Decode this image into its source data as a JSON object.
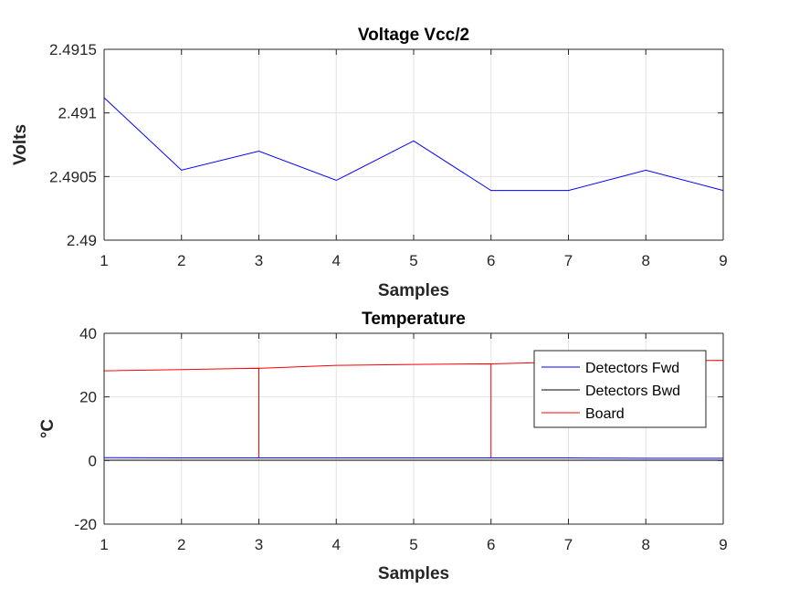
{
  "chart_data": [
    {
      "type": "line",
      "title": "Voltage Vcc/2",
      "xlabel": "Samples",
      "ylabel": "Volts",
      "xlim": [
        1,
        9
      ],
      "ylim": [
        2.49,
        2.4915
      ],
      "xticks": [
        1,
        2,
        3,
        4,
        5,
        6,
        7,
        8,
        9
      ],
      "yticks": [
        2.49,
        2.4905,
        2.491,
        2.4915
      ],
      "ytick_labels": [
        "2.49",
        "2.4905",
        "2.491",
        "2.4915"
      ],
      "grid": true,
      "series": [
        {
          "color": "#0000ff",
          "x": [
            1,
            2,
            3,
            4,
            5,
            6,
            7,
            8,
            9
          ],
          "y": [
            2.49112,
            2.49055,
            2.4907,
            2.49047,
            2.49078,
            2.49039,
            2.49039,
            2.49055,
            2.49039
          ]
        }
      ]
    },
    {
      "type": "line",
      "title": "Temperature",
      "xlabel": "Samples",
      "ylabel": "°C",
      "xlim": [
        1,
        9
      ],
      "ylim": [
        -20,
        40
      ],
      "xticks": [
        1,
        2,
        3,
        4,
        5,
        6,
        7,
        8,
        9
      ],
      "yticks": [
        -20,
        0,
        20,
        40
      ],
      "ytick_labels": [
        "-20",
        "0",
        "20",
        "40"
      ],
      "grid": true,
      "legend": "top-right",
      "series": [
        {
          "name": "Detectors Fwd",
          "color": "#0000ff",
          "x": [
            1,
            2,
            3,
            4,
            5,
            6,
            7,
            8,
            9
          ],
          "y": [
            0.9,
            0.8,
            0.8,
            0.8,
            0.8,
            0.8,
            0.8,
            0.7,
            0.7
          ]
        },
        {
          "name": "Detectors Bwd",
          "color": "#000000",
          "x": [
            1,
            2,
            3,
            4,
            5,
            6,
            7,
            8,
            9
          ],
          "y": [
            0.1,
            0.1,
            0.1,
            0.1,
            0.1,
            0.1,
            0.1,
            0.1,
            0.1
          ]
        },
        {
          "name": "Board",
          "color": "#ff0000",
          "x": [
            1,
            2,
            3,
            3,
            3,
            4,
            5,
            6,
            6,
            6,
            7,
            8,
            9,
            9
          ],
          "y": [
            28.2,
            28.6,
            29.0,
            0.8,
            29.0,
            29.9,
            30.2,
            30.4,
            0.8,
            30.4,
            31.0,
            31.3,
            31.5,
            0.8
          ]
        }
      ]
    }
  ]
}
